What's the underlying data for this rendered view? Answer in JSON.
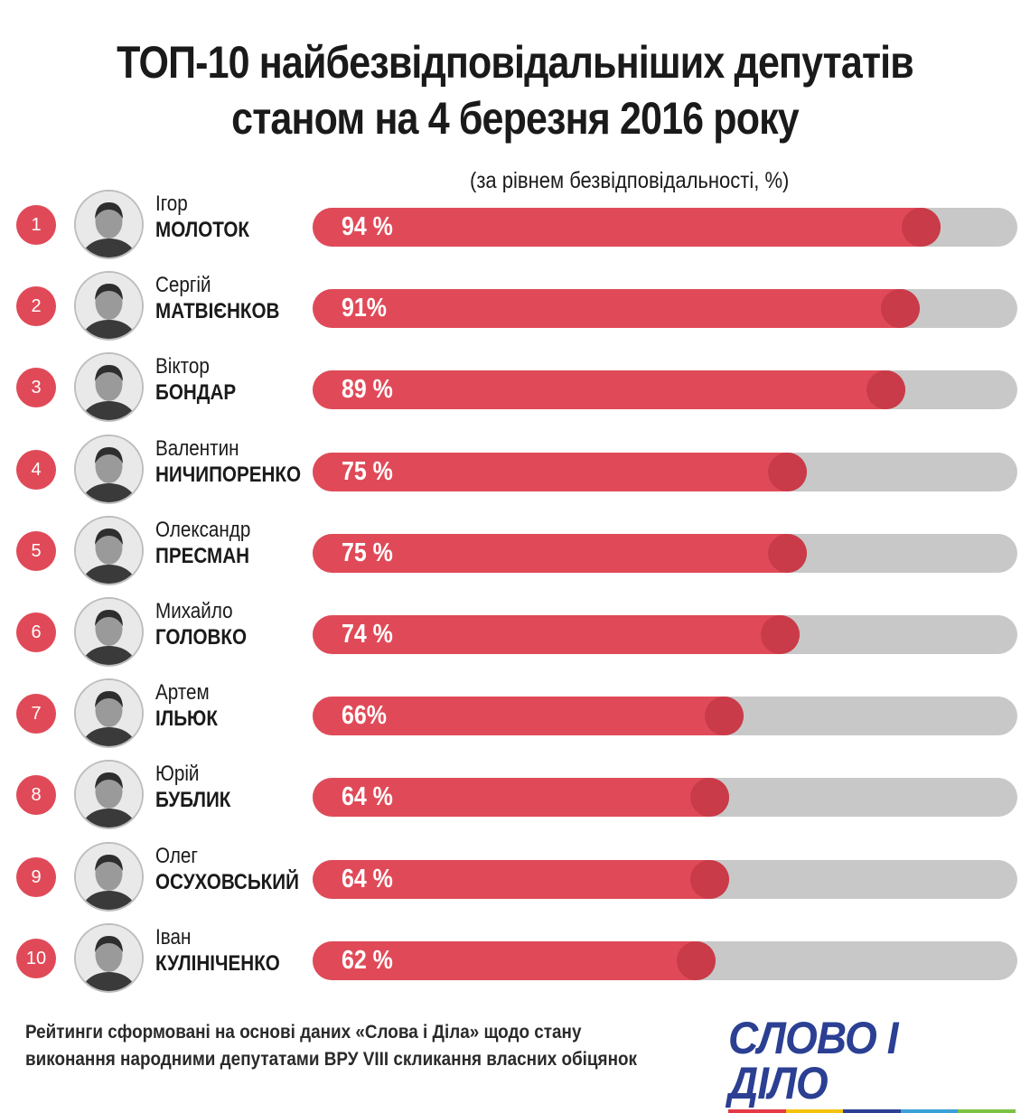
{
  "title_line1": "ТОП-10 найбезвідповідальніших депутатів",
  "title_line2": "станом на 4 березня 2016 року",
  "subtitle": "(за рівнем безвідповідальності, %)",
  "chart_data": {
    "type": "bar",
    "orientation": "horizontal",
    "title": "ТОП-10 найбезвідповідальніших депутатів станом на 4 березня 2016 року",
    "subtitle": "(за рівнем безвідповідальності, %)",
    "xlim": [
      0,
      100
    ],
    "grid": false,
    "rows": [
      {
        "rank": "1",
        "first": "Ігор",
        "last": "МОЛОТОК",
        "value": 94,
        "label": "94 %"
      },
      {
        "rank": "2",
        "first": "Сергій",
        "last": "МАТВІЄНКОВ",
        "value": 91,
        "label": "91%"
      },
      {
        "rank": "3",
        "first": "Віктор",
        "last": "БОНДАР",
        "value": 89,
        "label": "89 %"
      },
      {
        "rank": "4",
        "first": "Валентин",
        "last": "НИЧИПОРЕНКО",
        "value": 75,
        "label": "75 %"
      },
      {
        "rank": "5",
        "first": "Олександр",
        "last": "ПРЕСМАН",
        "value": 75,
        "label": "75 %"
      },
      {
        "rank": "6",
        "first": "Михайло",
        "last": "ГОЛОВКО",
        "value": 74,
        "label": "74 %"
      },
      {
        "rank": "7",
        "first": "Артем",
        "last": "ІЛЬЮК",
        "value": 66,
        "label": "66%"
      },
      {
        "rank": "8",
        "first": "Юрій",
        "last": "БУБЛИК",
        "value": 64,
        "label": "64 %"
      },
      {
        "rank": "9",
        "first": "Олег",
        "last": "ОСУХОВСЬКИЙ",
        "value": 64,
        "label": "64 %"
      },
      {
        "rank": "10",
        "first": "Іван",
        "last": "КУЛІНІЧЕНКО",
        "value": 62,
        "label": "62 %"
      }
    ]
  },
  "colors": {
    "bar": "#e04a58",
    "knob": "#c93b48",
    "track": "#c8c8c8",
    "logo": "#2b3f93",
    "stripe": [
      "#e63946",
      "#f4c20d",
      "#2b3f93",
      "#3aa0d8",
      "#7cc242"
    ]
  },
  "footnote_line1": "Рейтинги сформовані на основі даних «Слова і Діла» щодо стану",
  "footnote_line2": "виконання народними депутатами ВРУ VIII скликання власних обіцянок",
  "logo_text": "СЛОВО І ДІЛО"
}
